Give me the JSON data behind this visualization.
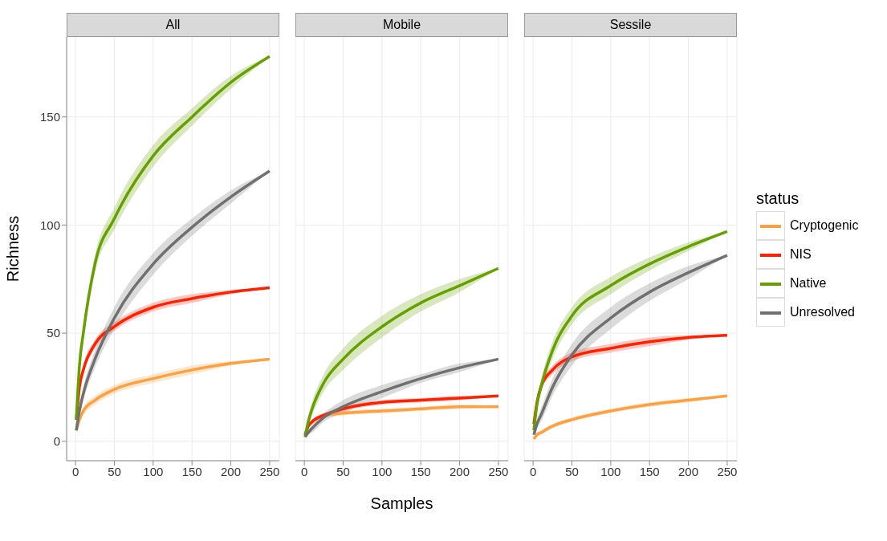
{
  "chart_data": [
    {
      "type": "line",
      "title": "All",
      "ylabel": "Richness",
      "x": [
        1,
        5,
        10,
        25,
        50,
        100,
        150,
        200,
        250
      ],
      "xlim": [
        -11.5,
        262.5
      ],
      "ylim": [
        -9,
        187
      ],
      "xticks": [
        0,
        50,
        100,
        150,
        200,
        250
      ],
      "yticks": [
        0,
        50,
        100,
        150
      ],
      "grid": true,
      "legend": false,
      "series": [
        {
          "color": "#ffa040",
          "values": [
            5,
            10,
            14,
            19,
            24,
            29,
            33,
            36,
            38
          ],
          "lower": [
            5,
            9,
            12,
            17,
            22,
            27,
            31,
            35,
            38
          ],
          "upper": [
            5,
            11,
            16,
            21,
            26,
            31,
            35,
            37,
            38
          ]
        },
        {
          "color": "#ff2000",
          "values": [
            10,
            25,
            33,
            45,
            53,
            62,
            66,
            69,
            71
          ],
          "lower": [
            10,
            24,
            31,
            43,
            51,
            60,
            64,
            68,
            71
          ],
          "upper": [
            10,
            26,
            35,
            47,
            55,
            64,
            68,
            70,
            71
          ]
        },
        {
          "color": "#66a000",
          "values": [
            10,
            35,
            50,
            82,
            103,
            132,
            150,
            166,
            178
          ],
          "lower": [
            10,
            33,
            47,
            78,
            98,
            127,
            146,
            163,
            178
          ],
          "upper": [
            10,
            37,
            53,
            86,
            108,
            137,
            154,
            169,
            178
          ]
        },
        {
          "color": "#707070",
          "values": [
            5,
            14,
            22,
            38,
            57,
            82,
            99,
            113,
            125
          ],
          "lower": [
            5,
            12,
            19,
            34,
            52,
            77,
            95,
            110,
            125
          ],
          "upper": [
            5,
            16,
            25,
            42,
            62,
            87,
            103,
            116,
            125
          ]
        }
      ]
    },
    {
      "type": "line",
      "title": "Mobile",
      "xlabel": "Samples",
      "x": [
        1,
        5,
        10,
        25,
        50,
        100,
        150,
        200,
        250
      ],
      "xlim": [
        -11.5,
        262.5
      ],
      "ylim": [
        -9,
        187
      ],
      "xticks": [
        0,
        50,
        100,
        150,
        200,
        250
      ],
      "yticks": [
        0,
        50,
        100,
        150
      ],
      "grid": true,
      "legend": false,
      "tick_labels": "x",
      "series": [
        {
          "color": "#ffa040",
          "values": [
            3,
            7,
            9,
            12,
            13,
            14,
            15,
            16,
            16
          ],
          "lower": [
            3,
            6,
            8,
            11,
            12,
            13,
            14,
            15,
            16
          ],
          "upper": [
            3,
            8,
            10,
            13,
            14,
            15,
            16,
            17,
            16
          ]
        },
        {
          "color": "#ff2000",
          "values": [
            3,
            7,
            9,
            12,
            15,
            18,
            19,
            20,
            21
          ],
          "lower": [
            3,
            6,
            8,
            11,
            14,
            17,
            18,
            19,
            21
          ],
          "upper": [
            3,
            8,
            10,
            13,
            16,
            19,
            20,
            21,
            21
          ]
        },
        {
          "color": "#66a000",
          "values": [
            2,
            9,
            15,
            27,
            38,
            53,
            64,
            72,
            80
          ],
          "lower": [
            2,
            7,
            12,
            23,
            33,
            48,
            60,
            69,
            80
          ],
          "upper": [
            2,
            11,
            18,
            31,
            43,
            58,
            68,
            75,
            80
          ]
        },
        {
          "color": "#707070",
          "values": [
            2,
            4,
            6,
            11,
            16,
            23,
            29,
            34,
            38
          ],
          "lower": [
            2,
            3,
            4,
            9,
            13,
            20,
            27,
            32,
            38
          ],
          "upper": [
            2,
            5,
            8,
            13,
            19,
            26,
            31,
            36,
            38
          ]
        }
      ]
    },
    {
      "type": "line",
      "title": "Sessile",
      "legend_title": "status",
      "x": [
        1,
        5,
        10,
        25,
        50,
        100,
        150,
        200,
        250
      ],
      "xlim": [
        -11.5,
        262.5
      ],
      "ylim": [
        -9,
        187
      ],
      "xticks": [
        0,
        50,
        100,
        150,
        200,
        250
      ],
      "yticks": [
        0,
        50,
        100,
        150
      ],
      "grid": true,
      "legend": "right",
      "tick_labels": "x",
      "series": [
        {
          "name": "Cryptogenic",
          "color": "#ffa040",
          "values": [
            1,
            3,
            4,
            7,
            10,
            14,
            17,
            19,
            21
          ],
          "lower": [
            1,
            2,
            3,
            6,
            9,
            13,
            16,
            18,
            21
          ],
          "upper": [
            1,
            4,
            5,
            8,
            11,
            15,
            18,
            20,
            21
          ]
        },
        {
          "name": "NIS",
          "color": "#ff2000",
          "values": [
            8,
            18,
            25,
            33,
            39,
            43,
            46,
            48,
            49
          ],
          "lower": [
            8,
            17,
            23,
            31,
            37,
            41,
            44,
            47,
            49
          ],
          "upper": [
            8,
            19,
            27,
            35,
            41,
            45,
            48,
            49,
            49
          ]
        },
        {
          "name": "Native",
          "color": "#66a000",
          "values": [
            5,
            17,
            25,
            42,
            58,
            72,
            82,
            90,
            97
          ],
          "lower": [
            5,
            15,
            22,
            38,
            54,
            68,
            79,
            88,
            97
          ],
          "upper": [
            5,
            19,
            28,
            46,
            62,
            76,
            85,
            92,
            97
          ]
        },
        {
          "name": "Unresolved",
          "color": "#707070",
          "values": [
            3,
            8,
            12,
            25,
            40,
            57,
            69,
            78,
            86
          ],
          "lower": [
            3,
            6,
            9,
            21,
            35,
            52,
            65,
            75,
            86
          ],
          "upper": [
            3,
            10,
            15,
            29,
            45,
            62,
            73,
            81,
            86
          ]
        }
      ]
    }
  ]
}
